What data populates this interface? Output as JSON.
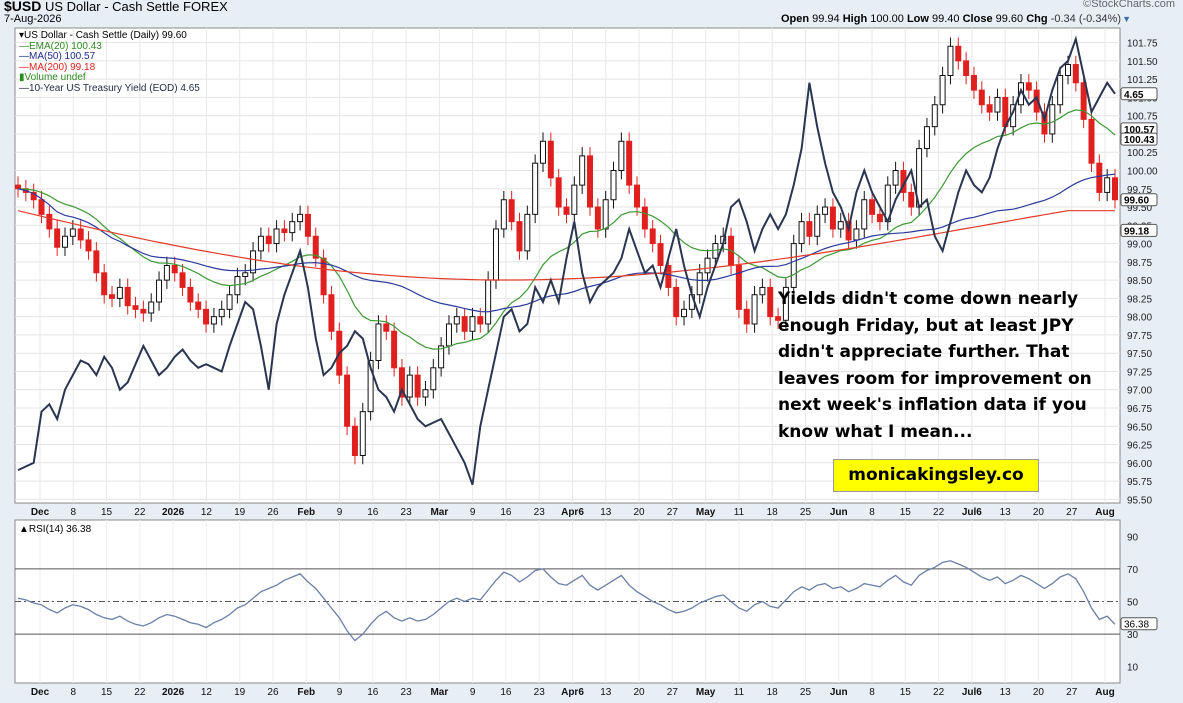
{
  "header": {
    "ticker": "$USD",
    "name": "US Dollar - Cash Settle",
    "market": "FOREX",
    "date": "7-Aug-2026",
    "brand": "©StockCharts.com",
    "open_label": "Open",
    "open": "99.94",
    "high_label": "High",
    "high": "100.00",
    "low_label": "Low",
    "low": "99.40",
    "close_label": "Close",
    "close": "99.60",
    "chg_label": "Chg",
    "chg": "-0.34 (-0.34%)"
  },
  "legend": [
    {
      "text": "US Dollar - Cash Settle (Daily) 99.60",
      "color": "#000000"
    },
    {
      "text": "EMA(20) 100.43",
      "color": "#2e8b22"
    },
    {
      "text": "MA(50) 100.57",
      "color": "#1f2a8c"
    },
    {
      "text": "MA(200) 99.18",
      "color": "#e02020"
    },
    {
      "text": "Volume undef",
      "color": "#2e8b22"
    },
    {
      "text": "10-Year US Treasury Yield (EOD) 4.65",
      "color": "#1f2a44"
    }
  ],
  "annotation": {
    "lines": [
      "Yields didn't come down nearly",
      "enough Friday, but at least JPY",
      "didn't appreciate further. That",
      "leaves room for improvement on",
      "next week's inflation data if you",
      "know what I mean..."
    ],
    "site": "monicakingsley.co"
  },
  "rsi_label": "RSI(14) 36.38",
  "colors": {
    "up": "#111111",
    "down": "#e0201e",
    "ema20": "#3c9a33",
    "ma50": "#2b3a9e",
    "ma200": "#e23b2a",
    "yield": "#2a3550",
    "rsi": "#6a7fa8"
  },
  "chart_data": [
    {
      "type": "candlestick",
      "title": "$USD US Dollar - Cash Settle FOREX",
      "x_tick_labels": [
        "Dec",
        "8",
        "15",
        "22",
        "2026",
        "12",
        "19",
        "26",
        "Feb",
        "9",
        "16",
        "23",
        "Mar",
        "9",
        "16",
        "23",
        "Apr6",
        "13",
        "20",
        "27",
        "May",
        "11",
        "18",
        "25",
        "Jun",
        "8",
        "15",
        "22",
        "Jul6",
        "13",
        "20",
        "27",
        "Aug"
      ],
      "y_ticks": [
        "101.75",
        "101.50",
        "101.25",
        "101.00",
        "100.75",
        "100.50",
        "100.25",
        "100.00",
        "99.75",
        "99.50",
        "99.25",
        "99.00",
        "98.75",
        "98.50",
        "98.25",
        "98.00",
        "97.75",
        "97.50",
        "97.25",
        "97.00",
        "96.75",
        "96.50",
        "96.25",
        "96.00",
        "95.75",
        "95.50"
      ],
      "ylim": [
        95.45,
        101.95
      ],
      "grid": true,
      "last_value_labels": [
        {
          "value": "4.65",
          "y": 101.05
        },
        {
          "value": "100.57",
          "y": 100.57
        },
        {
          "value": "100.43",
          "y": 100.43
        },
        {
          "value": "99.60",
          "y": 99.6
        },
        {
          "value": "99.18",
          "y": 99.18
        }
      ],
      "close": [
        99.75,
        99.7,
        99.6,
        99.4,
        99.2,
        98.95,
        99.1,
        99.2,
        99.05,
        98.9,
        98.6,
        98.3,
        98.25,
        98.4,
        98.15,
        98.1,
        98.05,
        98.2,
        98.5,
        98.7,
        98.6,
        98.4,
        98.2,
        98.1,
        97.9,
        98.0,
        98.1,
        98.3,
        98.55,
        98.6,
        98.9,
        99.1,
        99.0,
        99.2,
        99.15,
        99.3,
        99.4,
        99.1,
        98.8,
        98.3,
        97.8,
        97.2,
        96.5,
        96.1,
        96.7,
        97.4,
        97.9,
        97.8,
        97.3,
        96.9,
        97.2,
        96.9,
        97.0,
        97.3,
        97.6,
        97.9,
        98.0,
        97.8,
        98.0,
        97.9,
        98.5,
        99.2,
        99.6,
        99.3,
        98.9,
        99.4,
        100.1,
        100.4,
        99.9,
        99.5,
        99.4,
        99.8,
        100.2,
        99.5,
        99.2,
        99.6,
        100.0,
        100.4,
        99.8,
        99.5,
        99.2,
        99.0,
        98.7,
        98.4,
        98.0,
        98.1,
        98.3,
        98.6,
        98.8,
        99.0,
        99.1,
        98.7,
        98.1,
        97.9,
        98.3,
        98.4,
        98.0,
        97.95,
        98.4,
        99.0,
        99.3,
        99.1,
        99.4,
        99.5,
        99.2,
        99.3,
        99.05,
        99.2,
        99.6,
        99.4,
        99.3,
        99.8,
        100.0,
        99.7,
        99.5,
        100.3,
        100.6,
        100.9,
        101.3,
        101.7,
        101.5,
        101.3,
        101.1,
        100.9,
        100.8,
        101.0,
        100.6,
        100.9,
        101.2,
        101.1,
        100.8,
        100.5,
        100.9,
        101.3,
        101.45,
        101.2,
        100.7,
        100.1,
        99.7,
        99.9,
        99.6
      ]
    },
    {
      "type": "line",
      "title": "RSI(14) 36.38",
      "y_ticks": [
        "90",
        "70",
        "50",
        "30",
        "10"
      ],
      "ylim": [
        0,
        100
      ],
      "reference_lines": [
        70,
        50,
        30
      ],
      "last_value": "36.38",
      "values": [
        52,
        51,
        49,
        48,
        45,
        43,
        46,
        48,
        47,
        45,
        42,
        40,
        39,
        41,
        38,
        36,
        35,
        37,
        40,
        42,
        41,
        39,
        37,
        36,
        34,
        37,
        39,
        42,
        46,
        48,
        52,
        56,
        58,
        60,
        63,
        65,
        67,
        62,
        58,
        52,
        46,
        40,
        32,
        26,
        30,
        36,
        41,
        44,
        40,
        38,
        40,
        38,
        39,
        42,
        46,
        50,
        52,
        50,
        52,
        51,
        57,
        63,
        68,
        66,
        62,
        65,
        69,
        70,
        65,
        61,
        60,
        63,
        66,
        60,
        57,
        60,
        63,
        66,
        60,
        56,
        53,
        50,
        48,
        45,
        43,
        44,
        46,
        49,
        51,
        53,
        54,
        50,
        46,
        44,
        48,
        50,
        47,
        46,
        51,
        56,
        59,
        57,
        60,
        61,
        58,
        59,
        56,
        58,
        61,
        60,
        59,
        63,
        66,
        62,
        60,
        66,
        69,
        71,
        74,
        75,
        73,
        71,
        68,
        65,
        63,
        65,
        61,
        63,
        66,
        64,
        61,
        58,
        61,
        65,
        67,
        64,
        56,
        46,
        39,
        41,
        36
      ]
    },
    {
      "type": "line",
      "title": "10-Year US Treasury Yield (EOD) 4.65",
      "values": [
        95.9,
        95.95,
        96.0,
        96.7,
        96.8,
        96.6,
        97.0,
        97.2,
        97.4,
        97.35,
        97.2,
        97.45,
        97.3,
        97.0,
        97.1,
        97.35,
        97.6,
        97.4,
        97.2,
        97.3,
        97.45,
        97.55,
        97.4,
        97.3,
        97.35,
        97.3,
        97.25,
        97.6,
        97.9,
        98.2,
        98.1,
        97.6,
        97.0,
        97.9,
        98.3,
        98.6,
        98.9,
        98.4,
        97.7,
        97.2,
        97.3,
        97.5,
        97.6,
        97.8,
        97.7,
        97.3,
        97.0,
        96.9,
        96.7,
        97.0,
        96.8,
        96.6,
        96.5,
        96.55,
        96.6,
        96.4,
        96.2,
        96.0,
        95.7,
        96.5,
        97.0,
        97.5,
        98.0,
        98.1,
        97.8,
        97.9,
        98.4,
        98.2,
        98.5,
        98.2,
        98.8,
        99.3,
        98.6,
        98.2,
        98.4,
        98.5,
        98.6,
        98.8,
        99.2,
        98.9,
        98.6,
        98.7,
        98.4,
        98.8,
        99.2,
        98.7,
        98.3,
        98.0,
        98.4,
        98.7,
        99.0,
        99.5,
        99.6,
        99.3,
        98.9,
        99.2,
        99.4,
        99.2,
        99.4,
        99.8,
        100.3,
        101.2,
        100.6,
        100.1,
        99.7,
        99.5,
        99.2,
        99.7,
        100.0,
        99.7,
        99.5,
        99.3,
        99.6,
        99.8,
        100.0,
        99.5,
        99.6,
        99.1,
        98.9,
        99.3,
        99.7,
        100.0,
        99.8,
        99.7,
        99.9,
        100.3,
        100.6,
        100.8,
        101.1,
        100.9,
        101.0,
        100.7,
        101.1,
        101.4,
        101.5,
        101.8,
        101.3,
        100.8,
        101.0,
        101.2,
        101.05
      ]
    },
    {
      "type": "line",
      "title": "EMA(20) 100.43",
      "last": 100.43
    },
    {
      "type": "line",
      "title": "MA(50) 100.57",
      "last": 100.57
    },
    {
      "type": "line",
      "title": "MA(200) 99.18",
      "last": 99.18
    }
  ]
}
